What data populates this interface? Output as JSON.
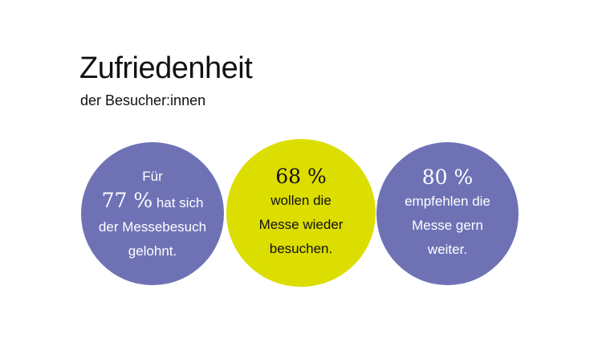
{
  "title": "Zufriedenheit",
  "subtitle": "der Besucher:innen",
  "colors": {
    "purple": "#6E72B5",
    "yellow": "#DCDD00"
  },
  "stats": [
    {
      "pre": "Für",
      "value": "77 %",
      "lines": [
        "hat sich",
        "der Messebesuch",
        "gelohnt."
      ]
    },
    {
      "value": "68 %",
      "lines": [
        "wollen die",
        "Messe wieder",
        "besuchen."
      ]
    },
    {
      "value": "80 %",
      "lines": [
        "empfehlen die",
        "Messe gern",
        "weiter."
      ]
    }
  ]
}
